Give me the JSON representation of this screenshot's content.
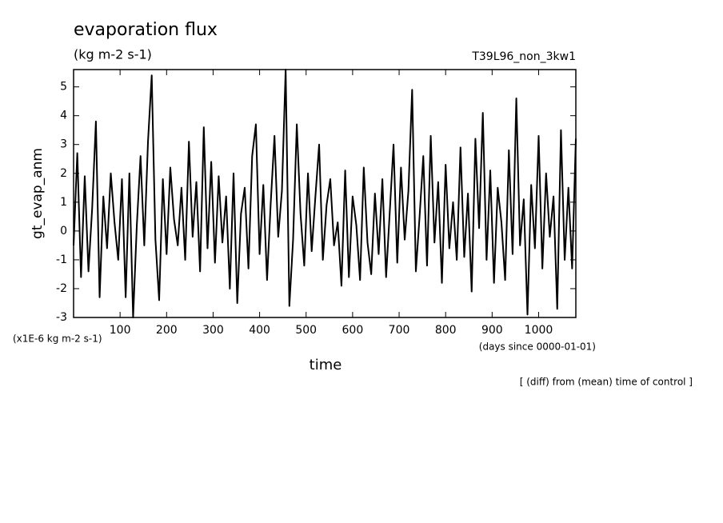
{
  "chart_data": {
    "type": "line",
    "title": "evaporation flux",
    "subtitle": "(kg m-2 s-1)",
    "experiment": "T39L96_non_3kw1",
    "y_label": "gt_evap_anm",
    "y_unit": "(x1E-6 kg m-2 s-1)",
    "x_label": "time",
    "x_unit": "(days since 0000-01-01)",
    "note": "[ (diff) from (mean) time of control ]",
    "xlim": [
      0,
      1080
    ],
    "ylim": [
      -3,
      5.6
    ],
    "xticks": [
      100,
      200,
      300,
      400,
      500,
      600,
      700,
      800,
      900,
      1000
    ],
    "yticks": [
      -3,
      -2,
      -1,
      0,
      1,
      2,
      3,
      4,
      5
    ],
    "x": [
      0,
      8,
      16,
      24,
      32,
      40,
      48,
      56,
      64,
      72,
      80,
      88,
      96,
      104,
      112,
      120,
      128,
      136,
      144,
      152,
      160,
      168,
      176,
      184,
      192,
      200,
      208,
      216,
      224,
      232,
      240,
      248,
      256,
      264,
      272,
      280,
      288,
      296,
      304,
      312,
      320,
      328,
      336,
      344,
      352,
      360,
      368,
      376,
      384,
      392,
      400,
      408,
      416,
      424,
      432,
      440,
      448,
      456,
      464,
      472,
      480,
      488,
      496,
      504,
      512,
      520,
      528,
      536,
      544,
      552,
      560,
      568,
      576,
      584,
      592,
      600,
      608,
      616,
      624,
      632,
      640,
      648,
      656,
      664,
      672,
      680,
      688,
      696,
      704,
      712,
      720,
      728,
      736,
      744,
      752,
      760,
      768,
      776,
      784,
      792,
      800,
      808,
      816,
      824,
      832,
      840,
      848,
      856,
      864,
      872,
      880,
      888,
      896,
      904,
      912,
      920,
      928,
      936,
      944,
      952,
      960,
      968,
      976,
      984,
      992,
      1000,
      1008,
      1016,
      1024,
      1032,
      1040,
      1048,
      1056,
      1064,
      1072,
      1080
    ],
    "series": [
      {
        "name": "gt_evap_anm",
        "color": "#000000",
        "values": [
          -0.5,
          2.7,
          -1.6,
          1.9,
          -1.4,
          0.8,
          3.8,
          -2.3,
          1.2,
          -0.6,
          2.0,
          0.3,
          -1.0,
          1.8,
          -2.3,
          2.0,
          -3.0,
          0.2,
          2.6,
          -0.5,
          3.1,
          5.4,
          -0.3,
          -2.4,
          1.8,
          -0.8,
          2.2,
          0.4,
          -0.5,
          1.5,
          -1.0,
          3.1,
          -0.2,
          1.7,
          -1.4,
          3.6,
          -0.6,
          2.4,
          -1.1,
          1.9,
          -0.4,
          1.2,
          -2.0,
          2.0,
          -2.5,
          0.6,
          1.5,
          -1.3,
          2.6,
          3.7,
          -0.8,
          1.6,
          -1.7,
          1.0,
          3.3,
          -0.2,
          1.4,
          5.6,
          -2.6,
          -0.3,
          3.7,
          0.6,
          -1.2,
          2.0,
          -0.7,
          1.2,
          3.0,
          -1.0,
          0.9,
          1.8,
          -0.5,
          0.3,
          -1.9,
          2.1,
          -1.6,
          1.2,
          0.2,
          -1.7,
          2.2,
          -0.4,
          -1.5,
          1.3,
          -0.8,
          1.8,
          -1.6,
          0.7,
          3.0,
          -1.1,
          2.2,
          -0.3,
          1.4,
          4.9,
          -1.4,
          0.5,
          2.6,
          -1.2,
          3.3,
          -0.4,
          1.7,
          -1.8,
          2.3,
          -0.6,
          1.0,
          -1.0,
          2.9,
          -0.9,
          1.3,
          -2.1,
          3.2,
          0.1,
          4.1,
          -1.0,
          2.1,
          -1.8,
          1.5,
          0.3,
          -1.7,
          2.8,
          -0.8,
          4.6,
          -0.5,
          1.1,
          -2.9,
          1.6,
          -0.6,
          3.3,
          -1.3,
          2.0,
          -0.2,
          1.2,
          -2.7,
          3.5,
          -1.0,
          1.5,
          -1.3,
          3.2
        ]
      }
    ]
  }
}
